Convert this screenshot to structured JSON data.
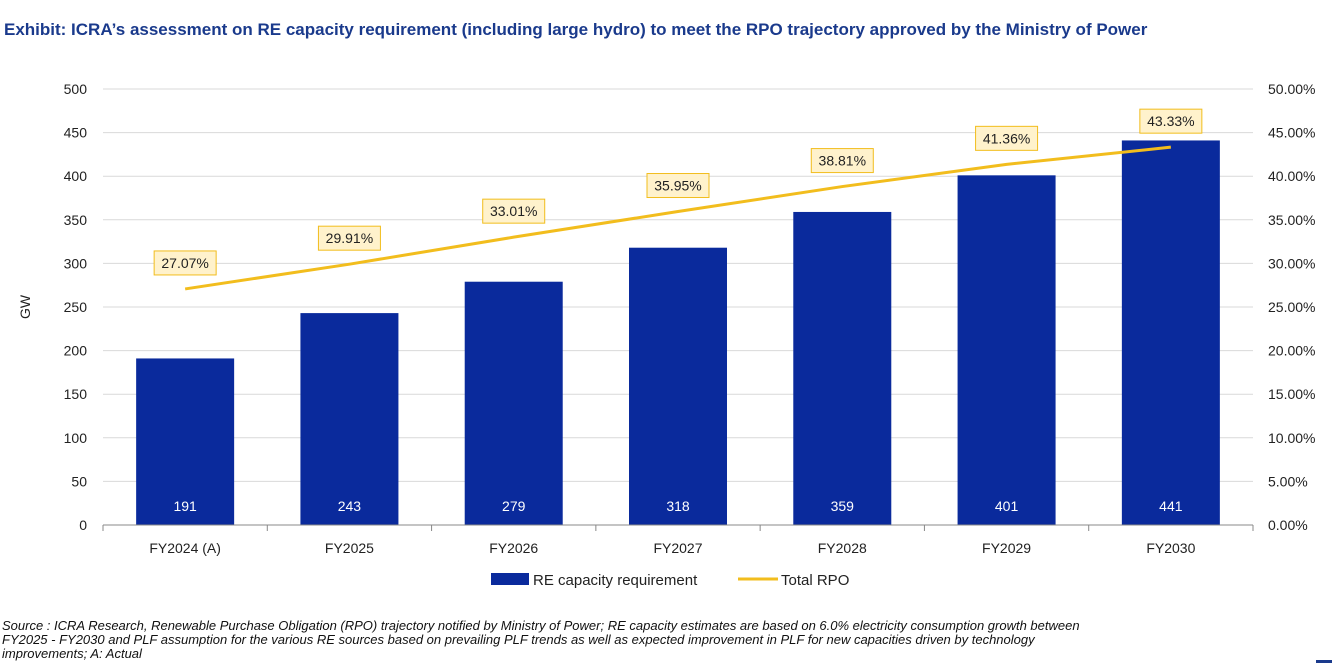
{
  "title": "Exhibit: ICRA’s assessment on RE capacity requirement (including large hydro) to meet the RPO trajectory approved by the Ministry of Power",
  "source": "Source : ICRA Research, Renewable Purchase Obligation (RPO) trajectory notified by Ministry of Power; RE capacity estimates are based on 6.0% electricity consumption growth between FY2025 - FY2030 and PLF assumption for the various RE sources based on prevailing PLF trends as well as expected improvement in PLF for new capacities driven by technology improvements; A: Actual",
  "colors": {
    "bar": "#0a2a9c",
    "line": "#f2bd1d",
    "label_box_fill": "#fff2cc",
    "label_box_border": "#f2bd1d",
    "title": "#1a3a8c"
  },
  "chart_data": {
    "type": "bar",
    "categories": [
      "FY2024 (A)",
      "FY2025",
      "FY2026",
      "FY2027",
      "FY2028",
      "FY2029",
      "FY2030"
    ],
    "series": [
      {
        "name": "RE capacity requirement",
        "type": "bar",
        "axis": "left",
        "values": [
          191,
          243,
          279,
          318,
          359,
          401,
          441
        ],
        "labels": [
          "191",
          "243",
          "279",
          "318",
          "359",
          "401",
          "441"
        ]
      },
      {
        "name": "Total RPO",
        "type": "line",
        "axis": "right",
        "values": [
          27.07,
          29.91,
          33.01,
          35.95,
          38.81,
          41.36,
          43.33
        ],
        "labels": [
          "27.07%",
          "29.91%",
          "33.01%",
          "35.95%",
          "38.81%",
          "41.36%",
          "43.33%"
        ]
      }
    ],
    "ylabel": "GW",
    "ylim": [
      0,
      500
    ],
    "yticks": [
      "0",
      "50",
      "100",
      "150",
      "200",
      "250",
      "300",
      "350",
      "400",
      "450",
      "500"
    ],
    "y2lim": [
      0,
      50
    ],
    "y2ticks": [
      "0.00%",
      "5.00%",
      "10.00%",
      "15.00%",
      "20.00%",
      "25.00%",
      "30.00%",
      "35.00%",
      "40.00%",
      "45.00%",
      "50.00%"
    ],
    "grid": true,
    "legend": "bottom"
  }
}
